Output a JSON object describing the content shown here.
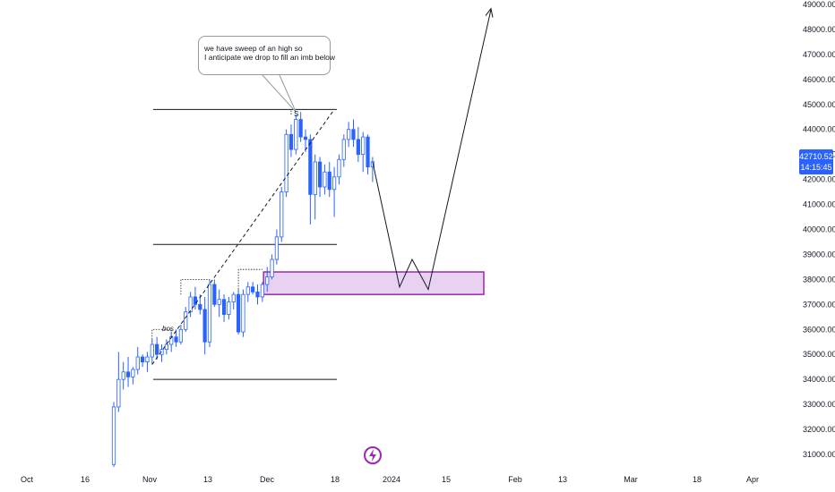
{
  "chart_data": {
    "type": "candlestick",
    "symbol": "",
    "price_axis": {
      "ticks": [
        "49000.00",
        "48000.00",
        "47000.00",
        "46000.00",
        "45000.00",
        "44000.00",
        "43000.00",
        "42000.00",
        "41000.00",
        "40000.00",
        "39000.00",
        "38000.00",
        "37000.00",
        "36000.00",
        "35000.00",
        "34000.00",
        "33000.00",
        "32000.00",
        "31000.00"
      ],
      "range": [
        30500,
        49150
      ]
    },
    "time_axis": {
      "ticks": [
        "Oct",
        "16",
        "Nov",
        "13",
        "Dec",
        "18",
        "2024",
        "15",
        "Feb",
        "13",
        "Mar",
        "18",
        "Apr"
      ]
    },
    "last_price": {
      "value": "42710.52",
      "countdown": "14:15:45"
    },
    "candles": [
      {
        "o": 30600,
        "h": 33100,
        "l": 30500,
        "c": 32900
      },
      {
        "o": 32900,
        "h": 35100,
        "l": 32700,
        "c": 34000
      },
      {
        "o": 34000,
        "h": 34700,
        "l": 33600,
        "c": 34300
      },
      {
        "o": 34300,
        "h": 34900,
        "l": 33700,
        "c": 34100
      },
      {
        "o": 34100,
        "h": 34500,
        "l": 33800,
        "c": 34400
      },
      {
        "o": 34400,
        "h": 35300,
        "l": 34200,
        "c": 34900
      },
      {
        "o": 34900,
        "h": 35000,
        "l": 34500,
        "c": 34700
      },
      {
        "o": 34700,
        "h": 35100,
        "l": 34300,
        "c": 34900
      },
      {
        "o": 34900,
        "h": 35600,
        "l": 34600,
        "c": 35400
      },
      {
        "o": 35400,
        "h": 35700,
        "l": 34800,
        "c": 35000
      },
      {
        "o": 35000,
        "h": 35400,
        "l": 34700,
        "c": 35200
      },
      {
        "o": 35200,
        "h": 35600,
        "l": 35000,
        "c": 35400
      },
      {
        "o": 35400,
        "h": 35900,
        "l": 35100,
        "c": 35700
      },
      {
        "o": 35700,
        "h": 36000,
        "l": 35300,
        "c": 35500
      },
      {
        "o": 35500,
        "h": 36200,
        "l": 35400,
        "c": 36000
      },
      {
        "o": 36000,
        "h": 36900,
        "l": 35900,
        "c": 36700
      },
      {
        "o": 36700,
        "h": 37500,
        "l": 36500,
        "c": 37300
      },
      {
        "o": 37300,
        "h": 37700,
        "l": 36800,
        "c": 37000
      },
      {
        "o": 37000,
        "h": 37400,
        "l": 36600,
        "c": 36800
      },
      {
        "o": 36800,
        "h": 37300,
        "l": 35000,
        "c": 35500
      },
      {
        "o": 35500,
        "h": 38000,
        "l": 35300,
        "c": 37800
      },
      {
        "o": 37800,
        "h": 38000,
        "l": 36900,
        "c": 37000
      },
      {
        "o": 37000,
        "h": 37600,
        "l": 36500,
        "c": 37200
      },
      {
        "o": 37200,
        "h": 37400,
        "l": 36300,
        "c": 36600
      },
      {
        "o": 36600,
        "h": 37300,
        "l": 36400,
        "c": 37100
      },
      {
        "o": 37100,
        "h": 37500,
        "l": 36800,
        "c": 37400
      },
      {
        "o": 37400,
        "h": 37600,
        "l": 35800,
        "c": 35900
      },
      {
        "o": 35900,
        "h": 37600,
        "l": 35700,
        "c": 37400
      },
      {
        "o": 37400,
        "h": 37900,
        "l": 37100,
        "c": 37700
      },
      {
        "o": 37700,
        "h": 37900,
        "l": 37400,
        "c": 37500
      },
      {
        "o": 37500,
        "h": 37800,
        "l": 37000,
        "c": 37300
      },
      {
        "o": 37300,
        "h": 37900,
        "l": 37100,
        "c": 37800
      },
      {
        "o": 37800,
        "h": 38500,
        "l": 37500,
        "c": 38100
      },
      {
        "o": 38100,
        "h": 39000,
        "l": 38000,
        "c": 38800
      },
      {
        "o": 38800,
        "h": 40000,
        "l": 38600,
        "c": 39700
      },
      {
        "o": 39700,
        "h": 41700,
        "l": 39500,
        "c": 41500
      },
      {
        "o": 41500,
        "h": 44000,
        "l": 41300,
        "c": 43800
      },
      {
        "o": 43800,
        "h": 44200,
        "l": 42900,
        "c": 43200
      },
      {
        "o": 43200,
        "h": 44600,
        "l": 43000,
        "c": 44400
      },
      {
        "o": 44400,
        "h": 44700,
        "l": 43500,
        "c": 43700
      },
      {
        "o": 43700,
        "h": 44000,
        "l": 43100,
        "c": 43600
      },
      {
        "o": 43600,
        "h": 43800,
        "l": 40200,
        "c": 41400
      },
      {
        "o": 41400,
        "h": 43000,
        "l": 40400,
        "c": 42700
      },
      {
        "o": 42700,
        "h": 42900,
        "l": 41300,
        "c": 41700
      },
      {
        "o": 41700,
        "h": 42600,
        "l": 41400,
        "c": 42300
      },
      {
        "o": 42300,
        "h": 42700,
        "l": 41300,
        "c": 41600
      },
      {
        "o": 41600,
        "h": 42500,
        "l": 40500,
        "c": 42100
      },
      {
        "o": 42100,
        "h": 43000,
        "l": 41800,
        "c": 42800
      },
      {
        "o": 42800,
        "h": 43800,
        "l": 42500,
        "c": 43600
      },
      {
        "o": 43600,
        "h": 44300,
        "l": 43300,
        "c": 44000
      },
      {
        "o": 44000,
        "h": 44400,
        "l": 43300,
        "c": 43600
      },
      {
        "o": 43600,
        "h": 44100,
        "l": 42700,
        "c": 43000
      },
      {
        "o": 43000,
        "h": 43900,
        "l": 42300,
        "c": 43700
      },
      {
        "o": 43700,
        "h": 43800,
        "l": 42200,
        "c": 42500
      },
      {
        "o": 42500,
        "h": 42900,
        "l": 41900,
        "c": 42710
      }
    ],
    "horizontal_levels": [
      44800,
      39400,
      34000
    ],
    "fvg_zone": {
      "top": 38300,
      "bottom": 37400
    },
    "annotations": {
      "callout_lines": [
        "we have sweep of an high so",
        "I anticipate we drop to fill an imb below"
      ],
      "bos_label": "bos",
      "sweep_label": "S"
    },
    "projection_path": [
      42700,
      37700,
      38800,
      37600,
      48800
    ],
    "colors": {
      "bull": "#ffffff",
      "bear": "#2962ff",
      "zone_fill": "#e9d2f1",
      "zone_border": "#9c27b0",
      "badge": "#2962ff",
      "logo": "#9c27b0"
    }
  }
}
